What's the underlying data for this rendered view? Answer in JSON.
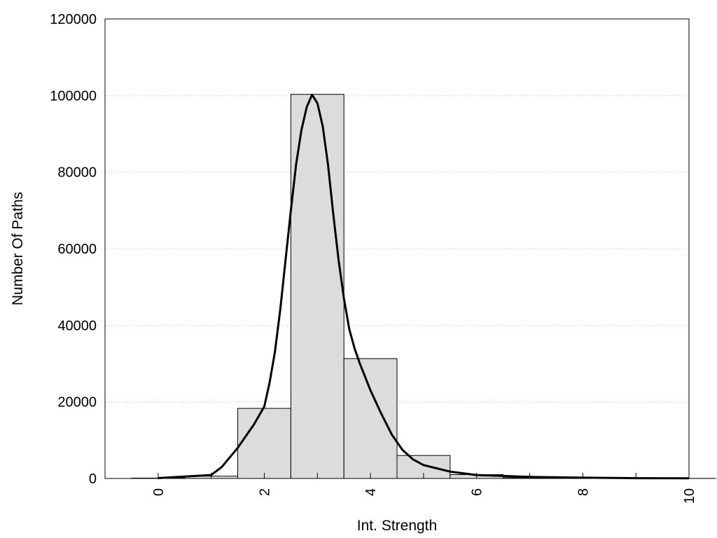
{
  "chart_data": {
    "type": "bar",
    "title": "",
    "xlabel": "Int. Strength",
    "ylabel": "Number Of Paths",
    "xlim": [
      -1,
      10
    ],
    "ylim": [
      0,
      120000
    ],
    "x_ticks": [
      "0",
      "2",
      "4",
      "6",
      "8",
      "10"
    ],
    "y_ticks": [
      "0",
      "20000",
      "40000",
      "60000",
      "80000",
      "100000",
      "120000"
    ],
    "grid": "horizontal dotted",
    "legend": "none",
    "colors": {
      "bar_fill": "#dcdcdc",
      "bar_edge": "#000000",
      "curve": "#000000"
    },
    "series": [
      {
        "type": "histogram",
        "bin_centers": [
          0,
          1,
          2,
          3,
          4,
          5,
          6,
          7,
          8,
          9,
          10
        ],
        "values": [
          100,
          600,
          18300,
          100300,
          31300,
          6000,
          1000,
          200,
          100,
          50,
          20
        ]
      },
      {
        "type": "line",
        "x": [
          0,
          0.5,
          1.0,
          1.2,
          1.5,
          1.8,
          2.0,
          2.1,
          2.2,
          2.3,
          2.4,
          2.5,
          2.6,
          2.7,
          2.8,
          2.9,
          3.0,
          3.1,
          3.2,
          3.3,
          3.4,
          3.5,
          3.6,
          3.7,
          3.8,
          3.9,
          4.0,
          4.2,
          4.4,
          4.6,
          4.8,
          5.0,
          5.5,
          6.0,
          7.0,
          8.0,
          9.0,
          10.0
        ],
        "y": [
          100,
          500,
          900,
          3000,
          8000,
          14000,
          18800,
          25000,
          33000,
          44000,
          57000,
          70000,
          82000,
          91000,
          97000,
          100200,
          98000,
          92000,
          82000,
          69000,
          57000,
          47000,
          39000,
          34000,
          30000,
          26500,
          23000,
          17000,
          11500,
          7500,
          5000,
          3500,
          1800,
          900,
          400,
          200,
          80,
          30
        ]
      }
    ]
  }
}
